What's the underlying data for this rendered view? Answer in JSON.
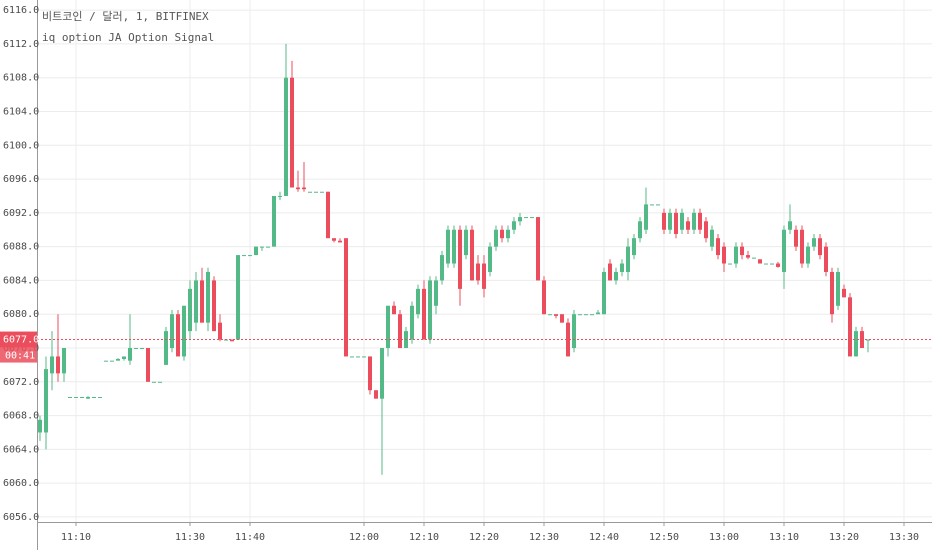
{
  "chart_data": {
    "type": "candlestick",
    "title": "비트코인 / 달러, 1, BITFINEX",
    "subtitle": "iq option JA Option Signal",
    "up_color": "#53b987",
    "down_color": "#eb4d5c",
    "grid": true,
    "last_price": {
      "value": 6077,
      "label": "6077.0"
    },
    "countdown": "00:41",
    "ylim": [
      6055.4,
      6117.2
    ],
    "yticks": [
      {
        "value": 6056,
        "label": "6056.0"
      },
      {
        "value": 6060,
        "label": "6060.0"
      },
      {
        "value": 6064,
        "label": "6064.0"
      },
      {
        "value": 6068,
        "label": "6068.0"
      },
      {
        "value": 6072,
        "label": "6072.0"
      },
      {
        "value": 6076,
        "label": "6076.0"
      },
      {
        "value": 6080,
        "label": "6080.0"
      },
      {
        "value": 6084,
        "label": "6084.0"
      },
      {
        "value": 6088,
        "label": "6088.0"
      },
      {
        "value": 6092,
        "label": "6092.0"
      },
      {
        "value": 6096,
        "label": "6096.0"
      },
      {
        "value": 6100,
        "label": "6100.0"
      },
      {
        "value": 6104,
        "label": "6104.0"
      },
      {
        "value": 6108,
        "label": "6108.0"
      },
      {
        "value": 6112,
        "label": "6112.0"
      },
      {
        "value": 6116,
        "label": "6116.0"
      }
    ],
    "categories": [
      null,
      null,
      null,
      null,
      null,
      null,
      "11:10",
      null,
      null,
      null,
      null,
      null,
      null,
      null,
      null,
      null,
      null,
      null,
      null,
      null,
      null,
      null,
      null,
      null,
      null,
      "11:30",
      null,
      null,
      null,
      null,
      null,
      null,
      null,
      null,
      null,
      "11:40",
      null,
      null,
      null,
      null,
      null,
      null,
      null,
      null,
      null,
      null,
      null,
      null,
      null,
      null,
      null,
      null,
      null,
      null,
      "12:00",
      null,
      null,
      null,
      null,
      null,
      null,
      null,
      null,
      null,
      "12:10",
      null,
      null,
      null,
      null,
      null,
      null,
      null,
      null,
      null,
      "12:20",
      null,
      null,
      null,
      null,
      null,
      null,
      null,
      null,
      null,
      "12:30",
      null,
      null,
      null,
      null,
      null,
      null,
      null,
      null,
      null,
      "12:40",
      null,
      null,
      null,
      null,
      null,
      null,
      null,
      null,
      null,
      "12:50",
      null,
      null,
      null,
      null,
      null,
      null,
      null,
      null,
      null,
      "13:00",
      null,
      null,
      null,
      null,
      null,
      null,
      null,
      null,
      null,
      "13:10",
      null,
      null,
      null,
      null,
      null,
      null,
      null,
      null,
      null,
      "13:20",
      null,
      null,
      null,
      null,
      null,
      null,
      null,
      null,
      null,
      "13:30"
    ],
    "open": [
      6066,
      6066,
      6073,
      6075,
      6073,
      6070.2,
      6070.2,
      6070.2,
      6070,
      6070.2,
      6070.2,
      6074.5,
      6074.5,
      6074.5,
      6074.7,
      6074.5,
      6076,
      6076,
      6076,
      6072,
      6072,
      6074,
      6076,
      6080,
      6075,
      6078,
      6079,
      6084,
      6079,
      6084,
      6079,
      6077,
      6077,
      6077,
      6087,
      6087,
      6087,
      6088,
      6088,
      6088,
      6094,
      6094,
      6108,
      6095,
      6095,
      6094.5,
      6094.5,
      6094.5,
      6094.5,
      6089,
      6088.7,
      6089,
      6075,
      6075,
      6075,
      6075,
      6071,
      6070,
      6076,
      6081,
      6080,
      6076,
      6077,
      6080,
      6083,
      6077,
      6081,
      6084,
      6086,
      6086,
      6090,
      6087,
      6090,
      6086,
      6086,
      6085,
      6088,
      6090,
      6089,
      6090,
      6091,
      6091.5,
      6091.5,
      6091.5,
      6084,
      6080,
      6080,
      6080,
      6079,
      6076,
      6080,
      6080,
      6080,
      6080,
      6080,
      6086,
      6084,
      6085,
      6085,
      6087,
      6089,
      6090,
      6093,
      6093,
      6092,
      6090,
      6092,
      6090,
      6091,
      6090,
      6092,
      6091,
      6088,
      6089,
      6088,
      6086,
      6086,
      6088,
      6087,
      6086.7,
      6086.5,
      6086,
      6086,
      6086,
      6085,
      6090,
      6090,
      6090,
      6086,
      6088,
      6089,
      6088,
      6085,
      6081,
      6083,
      6082,
      6075,
      6078,
      6077,
      null,
      null,
      null,
      null,
      null,
      null
    ],
    "high": [
      6068,
      6075,
      6078,
      6080,
      6076,
      6070.2,
      6070.2,
      6070.2,
      6070.3,
      6070.2,
      6070.2,
      6074.5,
      6074.5,
      6074.8,
      6075,
      6080,
      6076,
      6076,
      6076,
      6072,
      6072,
      6078.5,
      6080.5,
      6080.5,
      6081,
      6084,
      6085,
      6085.5,
      6085.5,
      6084.5,
      6080,
      6077,
      6077,
      6087,
      6087,
      6087,
      6088,
      6088,
      6088,
      6094,
      6094.5,
      6112,
      6110,
      6097,
      6098,
      6094.5,
      6094.5,
      6094.5,
      6094.5,
      6089,
      6089,
      6089,
      6075,
      6075,
      6075,
      6075,
      6071,
      6076,
      6081,
      6081.5,
      6080.5,
      6078.5,
      6081.5,
      6083.5,
      6084,
      6084.5,
      6084.5,
      6087.5,
      6090.5,
      6090.5,
      6090.5,
      6090.5,
      6090.5,
      6087,
      6087,
      6088.5,
      6090.5,
      6090.5,
      6090.5,
      6091.5,
      6092,
      6091.5,
      6091.5,
      6091.5,
      6084.5,
      6080,
      6080,
      6080,
      6079.5,
      6080.5,
      6080,
      6080,
      6080,
      6080.5,
      6085.5,
      6086.5,
      6085.5,
      6086.5,
      6089,
      6089.5,
      6091.5,
      6095,
      6093,
      6093,
      6092.5,
      6092.5,
      6092.5,
      6092.5,
      6091.5,
      6092.5,
      6092.5,
      6091.5,
      6090.5,
      6089.5,
      6088.5,
      6086,
      6088.5,
      6088.5,
      6087.5,
      6086.7,
      6086.5,
      6086,
      6086,
      6086.2,
      6090.5,
      6093,
      6090.5,
      6090.5,
      6088.5,
      6089.5,
      6089.5,
      6088.5,
      6085.5,
      6085.5,
      6083.5,
      6082.5,
      6078.5,
      6078.5,
      6077,
      null,
      null,
      null,
      null,
      null,
      null
    ],
    "low": [
      6065,
      6064,
      6071,
      6072,
      6072,
      6070.2,
      6070.2,
      6070.2,
      6070,
      6070.2,
      6070.2,
      6074.5,
      6074.5,
      6074.5,
      6074.5,
      6074,
      6076,
      6076,
      6072,
      6072,
      6072,
      6074,
      6075.5,
      6075,
      6074.5,
      6077,
      6078,
      6079,
      6078,
      6078,
      6076.8,
      6077,
      6076.8,
      6077,
      6087,
      6087,
      6087,
      6087.5,
      6088,
      6088,
      6093.5,
      6094,
      6095,
      6094.5,
      6094.5,
      6094.5,
      6094.5,
      6094.5,
      6089,
      6088.5,
      6088.5,
      6075,
      6075,
      6075,
      6075,
      6070.5,
      6070,
      6061,
      6075,
      6080,
      6076,
      6076,
      6076.5,
      6079.5,
      6077,
      6076.5,
      6080,
      6083.5,
      6085.5,
      6085.5,
      6081,
      6086.5,
      6084,
      6083.5,
      6082,
      6084.5,
      6087.5,
      6088.5,
      6088.5,
      6089.5,
      6090.5,
      6091.5,
      6091.5,
      6084,
      6080,
      6080,
      6079.5,
      6079,
      6075,
      6075.5,
      6080,
      6080,
      6080,
      6080,
      6080,
      6084,
      6083.5,
      6084.5,
      6084,
      6086.5,
      6088.5,
      6089.5,
      6093,
      6093,
      6089.5,
      6089.5,
      6089,
      6089.5,
      6089.5,
      6089.5,
      6089.5,
      6088.5,
      6087.5,
      6086.5,
      6085,
      6086,
      6085.5,
      6086.5,
      6086.5,
      6086.7,
      6086,
      6086,
      6086,
      6085.5,
      6083,
      6089.5,
      6087.5,
      6085.5,
      6085.5,
      6087.5,
      6086.5,
      6084.5,
      6079,
      6080.5,
      6082,
      6075,
      6075,
      6076,
      6075.5,
      null,
      null,
      null,
      null,
      null,
      null
    ],
    "close": [
      6067.5,
      6073.5,
      6075,
      6073,
      6076,
      6070.2,
      6070.2,
      6070.2,
      6070.2,
      6070.2,
      6070.2,
      6074.5,
      6074.5,
      6074.7,
      6075,
      6076,
      6076,
      6076,
      6072,
      6072,
      6072,
      6078,
      6080,
      6075,
      6081,
      6083,
      6084,
      6079,
      6085,
      6078,
      6077,
      6077,
      6076.8,
      6087,
      6087,
      6087,
      6088,
      6088,
      6088,
      6094,
      6094,
      6108,
      6095,
      6094.8,
      6094.8,
      6094.5,
      6094.5,
      6094.5,
      6089,
      6088.7,
      6088.5,
      6075,
      6075,
      6075,
      6075,
      6071,
      6070,
      6076,
      6081,
      6080,
      6076,
      6078,
      6081,
      6083,
      6077,
      6084,
      6084,
      6087,
      6090,
      6090,
      6083,
      6090,
      6084,
      6084,
      6083,
      6088,
      6090,
      6089,
      6090,
      6091,
      6091.5,
      6091.5,
      6091.5,
      6084,
      6080,
      6080,
      6079.8,
      6079,
      6075,
      6080,
      6080,
      6080,
      6080,
      6080.2,
      6085,
      6084,
      6085,
      6086,
      6088,
      6089,
      6091,
      6093,
      6093,
      6093,
      6090,
      6092,
      6089.5,
      6092,
      6090,
      6092,
      6090,
      6089,
      6090,
      6087,
      6086,
      6086,
      6088,
      6087,
      6086.7,
      6086.7,
      6086,
      6086,
      6086,
      6085.6,
      6090,
      6091,
      6088,
      6086,
      6088,
      6089,
      6087,
      6085,
      6080,
      6085,
      6082,
      6075,
      6078,
      6076,
      6077,
      null,
      null,
      null,
      null,
      null,
      null
    ]
  }
}
